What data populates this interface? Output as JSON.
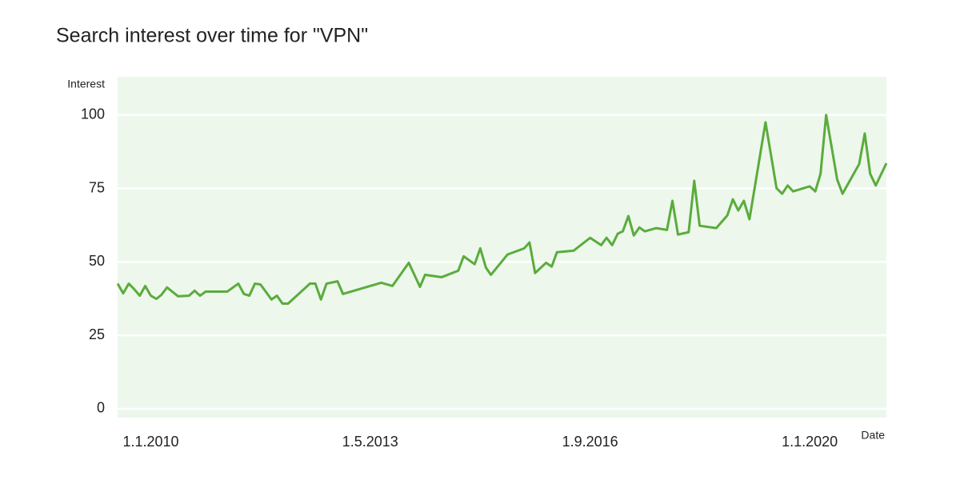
{
  "chart_data": {
    "type": "line",
    "title": "Search interest over time for \"VPN\"",
    "y_label": "Interest",
    "x_label": "Date",
    "x": [
      "2009-07-01",
      "2009-08-01",
      "2009-09-01",
      "2009-10-01",
      "2009-11-01",
      "2009-12-01",
      "2010-01-01",
      "2010-02-01",
      "2010-03-01",
      "2010-04-01",
      "2010-06-01",
      "2010-08-01",
      "2010-09-01",
      "2010-10-01",
      "2010-11-01",
      "2011-03-01",
      "2011-05-01",
      "2011-06-01",
      "2011-07-01",
      "2011-08-01",
      "2011-09-01",
      "2011-11-01",
      "2011-12-01",
      "2012-01-01",
      "2012-02-01",
      "2012-06-01",
      "2012-07-01",
      "2012-08-01",
      "2012-09-01",
      "2012-11-01",
      "2012-12-01",
      "2013-07-01",
      "2013-09-01",
      "2013-12-01",
      "2014-02-01",
      "2014-03-01",
      "2014-06-01",
      "2014-09-01",
      "2014-10-01",
      "2014-12-01",
      "2015-01-01",
      "2015-02-01",
      "2015-03-01",
      "2015-06-01",
      "2015-09-01",
      "2015-10-01",
      "2015-11-01",
      "2016-01-01",
      "2016-02-01",
      "2016-03-01",
      "2016-06-01",
      "2016-09-01",
      "2016-11-01",
      "2016-12-01",
      "2017-01-01",
      "2017-02-01",
      "2017-03-01",
      "2017-04-01",
      "2017-05-01",
      "2017-06-01",
      "2017-07-01",
      "2017-09-01",
      "2017-11-01",
      "2017-12-01",
      "2018-01-01",
      "2018-03-01",
      "2018-04-01",
      "2018-05-01",
      "2018-08-01",
      "2018-10-01",
      "2018-11-01",
      "2018-12-01",
      "2019-01-01",
      "2019-02-01",
      "2019-05-01",
      "2019-07-01",
      "2019-08-01",
      "2019-09-01",
      "2019-10-01",
      "2020-01-01",
      "2020-02-01",
      "2020-03-01",
      "2020-04-01",
      "2020-06-01",
      "2020-07-01",
      "2020-10-01",
      "2020-11-01",
      "2020-12-01",
      "2021-01-01",
      "2021-03-01"
    ],
    "series": [
      {
        "name": "VPN",
        "color": "#5aac3c",
        "values": [
          42.6,
          39.3,
          42.6,
          40.7,
          38.5,
          41.8,
          38.5,
          37.4,
          38.8,
          41.3,
          38.3,
          38.5,
          40.2,
          38.5,
          39.9,
          39.9,
          42.6,
          39.1,
          38.5,
          42.6,
          42.3,
          37.2,
          38.5,
          35.8,
          35.8,
          42.6,
          42.6,
          37.2,
          42.6,
          43.4,
          39.1,
          42.9,
          41.8,
          49.7,
          41.5,
          45.6,
          44.8,
          47.0,
          51.9,
          49.2,
          54.6,
          48.1,
          45.6,
          52.5,
          54.6,
          56.6,
          46.2,
          49.7,
          48.4,
          53.3,
          53.8,
          58.2,
          55.7,
          58.2,
          55.7,
          59.6,
          60.4,
          65.6,
          59.0,
          61.7,
          60.4,
          61.5,
          60.9,
          70.8,
          59.3,
          60.1,
          77.6,
          62.3,
          61.5,
          65.8,
          71.3,
          67.5,
          70.8,
          64.5,
          97.5,
          75.1,
          73.2,
          76.0,
          74.0,
          75.7,
          74.0,
          80.0,
          100,
          78.1,
          73.2,
          83.3,
          93.7,
          80.0,
          76.0,
          83.6
        ]
      }
    ],
    "xlim": [
      "2009-07-01",
      "2021-03-01"
    ],
    "xticks": [
      {
        "value": "2010-01-01",
        "label": "1.1.2010"
      },
      {
        "value": "2013-05-01",
        "label": "1.5.2013"
      },
      {
        "value": "2016-09-01",
        "label": "1.9.2016"
      },
      {
        "value": "2020-01-01",
        "label": "1.1.2020"
      }
    ],
    "ylim": [
      -3,
      113
    ],
    "yticks": [
      0,
      25,
      50,
      75,
      100
    ],
    "grid": true
  }
}
